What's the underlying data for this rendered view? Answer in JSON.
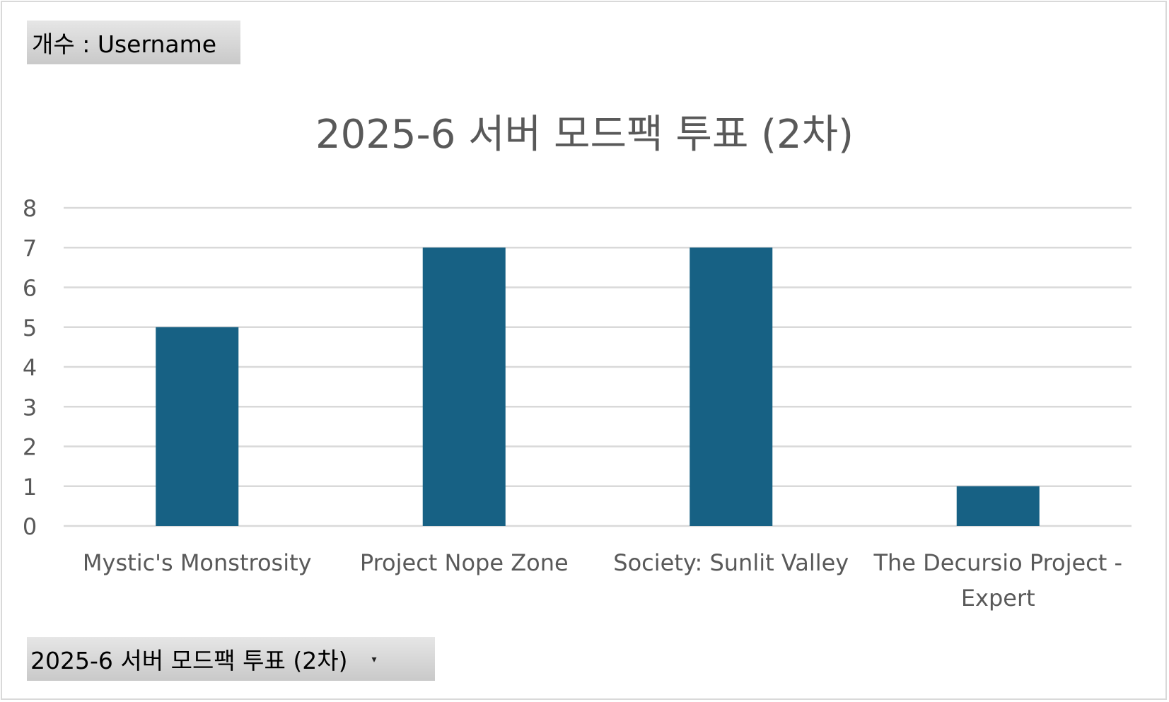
{
  "pivot": {
    "value_field_label": "개수 : Username",
    "filter_field_label": "2025-6 서버 모드팩 투표 (2차)",
    "filter_arrow_icon": "dropdown-arrow-icon"
  },
  "colors": {
    "bar": "#176184",
    "grid": "#d9d9d9",
    "text": "#595959",
    "field_button": "#d4d4d4"
  },
  "chart_data": {
    "type": "bar",
    "title": "2025-6 서버 모드팩 투표 (2차)",
    "xlabel": "",
    "ylabel": "",
    "categories": [
      [
        "Mystic's Monstrosity"
      ],
      [
        "Project Nope Zone"
      ],
      [
        "Society: Sunlit Valley"
      ],
      [
        "The Decursio Project -",
        "Expert"
      ]
    ],
    "values": [
      5,
      7,
      7,
      1
    ],
    "ylim": [
      0,
      8
    ],
    "yticks": [
      "0",
      "1",
      "2",
      "3",
      "4",
      "5",
      "6",
      "7",
      "8"
    ],
    "grid": true,
    "legend": "none"
  }
}
